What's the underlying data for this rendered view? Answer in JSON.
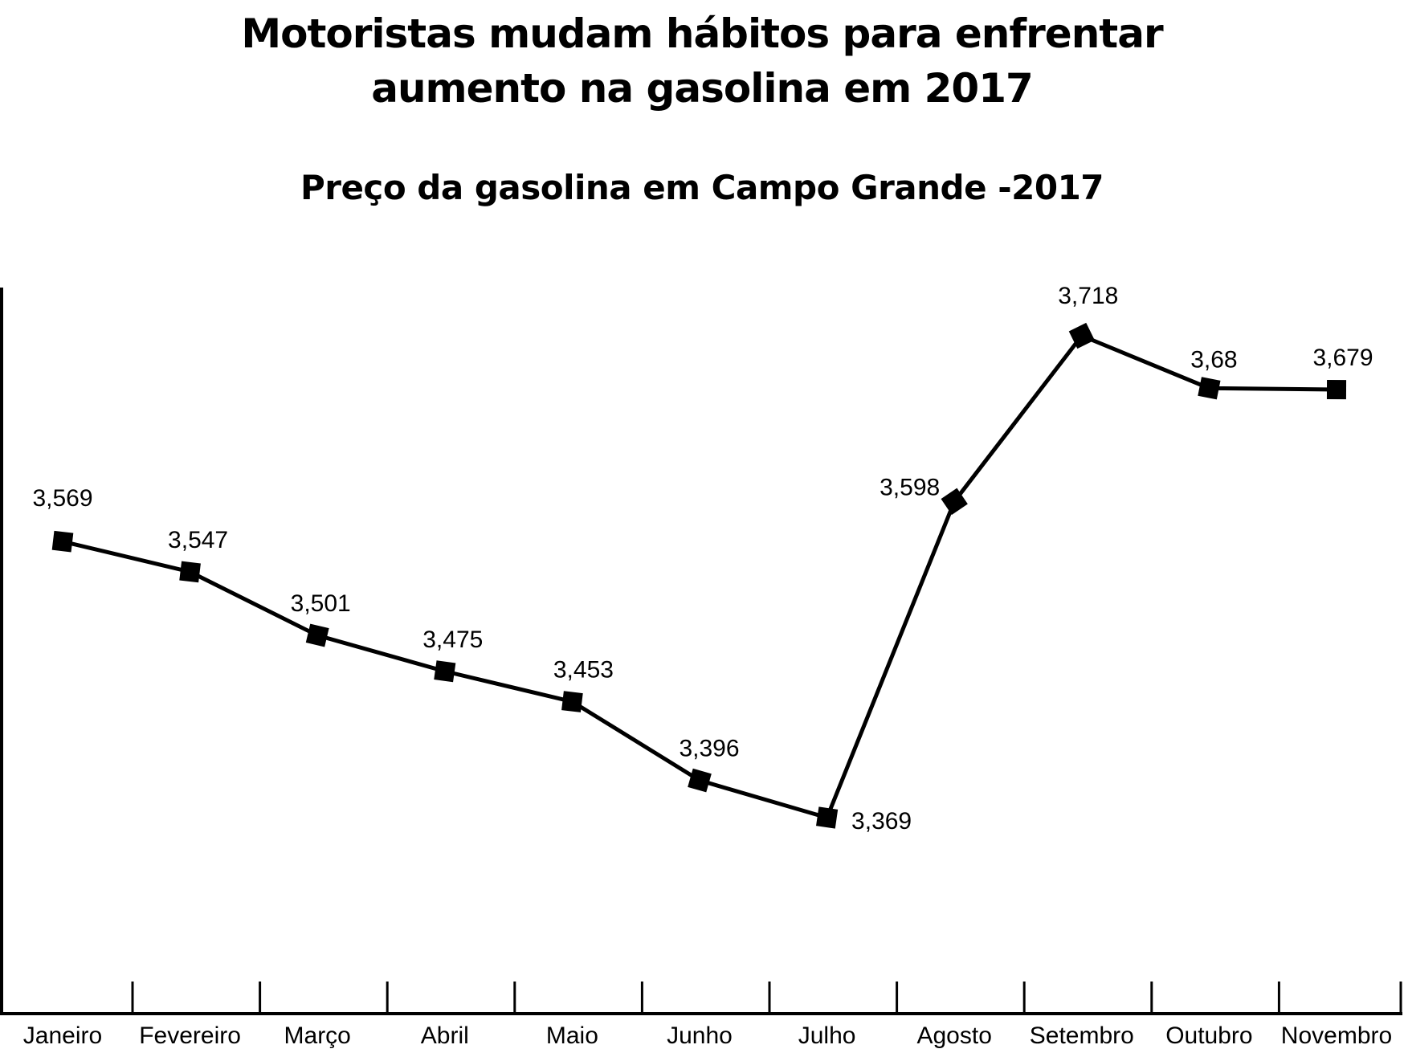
{
  "chart_data": {
    "type": "line",
    "title": "Motoristas mudam hábitos para enfrentar aumento na gasolina em 2017",
    "title_lines": [
      "Motoristas mudam hábitos para enfrentar",
      "aumento na gasolina em 2017"
    ],
    "subtitle": "Preço da gasolina em Campo Grande -2017",
    "categories": [
      "Janeiro",
      "Fevereiro",
      "Março",
      "Abril",
      "Maio",
      "Junho",
      "Julho",
      "Agosto",
      "Setembro",
      "Outubro",
      "Novembro"
    ],
    "values": [
      3.569,
      3.547,
      3.501,
      3.475,
      3.453,
      3.396,
      3.369,
      3.598,
      3.718,
      3.68,
      3.679
    ],
    "data_labels": [
      "3,569",
      "3,547",
      "3,501",
      "3,475",
      "3,453",
      "3,396",
      "3,369",
      "3,598",
      "3,718",
      "3,68",
      "3,679"
    ],
    "xlabel": "",
    "ylabel": "",
    "grid": false,
    "legend": "none",
    "line_color": "#000000",
    "marker": "square"
  }
}
